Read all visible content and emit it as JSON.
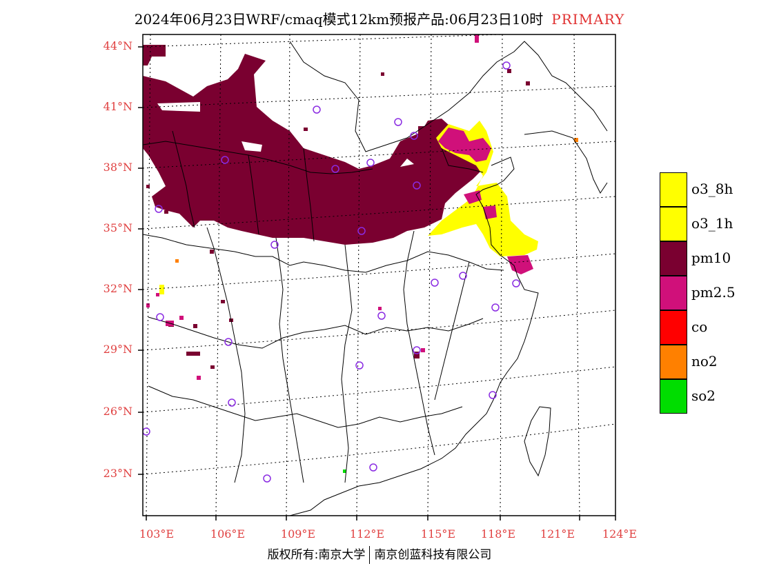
{
  "title": {
    "main": "2024年06月23日WRF/cmaq模式12km预报产品:06月23日10时",
    "tag": "PRIMARY"
  },
  "map": {
    "region": "China (east)",
    "lat_ticks": [
      "44°N",
      "41°N",
      "38°N",
      "35°N",
      "32°N",
      "29°N",
      "26°N",
      "23°N"
    ],
    "lon_ticks": [
      "103°E",
      "106°E",
      "109°E",
      "112°E",
      "115°E",
      "118°E",
      "121°E",
      "124°E"
    ],
    "label_color": "#e04040",
    "grid": "dotted",
    "city_marker_color": "#8a2be2"
  },
  "legend": {
    "items": [
      {
        "label": "o3_8h",
        "color": "#ffff00"
      },
      {
        "label": "o3_1h",
        "color": "#ffff00"
      },
      {
        "label": "pm10",
        "color": "#7a0030"
      },
      {
        "label": "pm2.5",
        "color": "#d0107a"
      },
      {
        "label": "co",
        "color": "#ff0000"
      },
      {
        "label": "no2",
        "color": "#ff8000"
      },
      {
        "label": "so2",
        "color": "#00dd00"
      }
    ]
  },
  "copyright": {
    "left": "版权所有:南京大学",
    "right": "南京创蓝科技有限公司"
  }
}
